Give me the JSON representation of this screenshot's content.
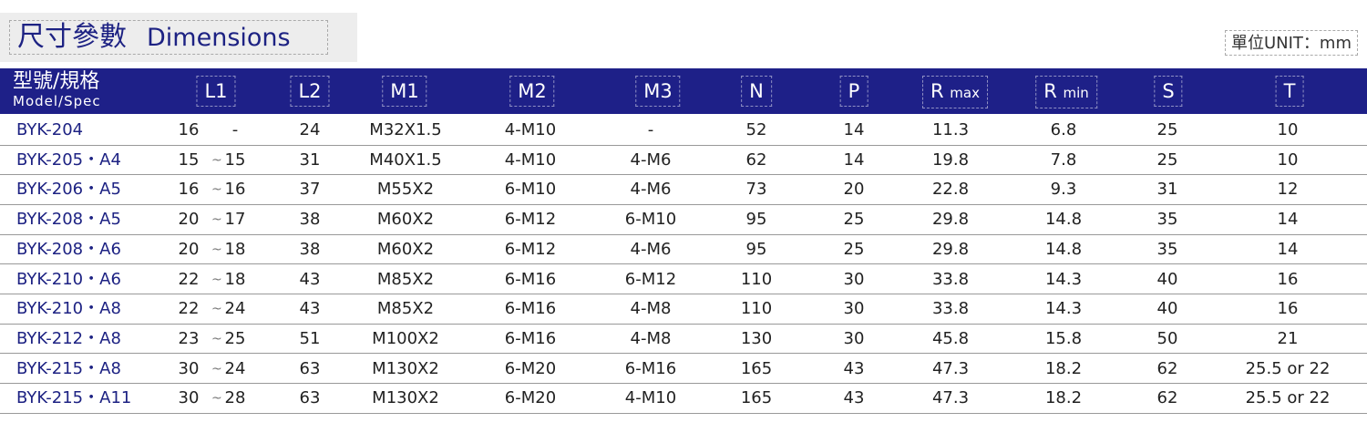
{
  "title": {
    "zh": "尺寸參數",
    "en": "Dimensions"
  },
  "unit": "單位UNIT：mm",
  "header": {
    "model_zh": "型號/規格",
    "model_en": "Model/Spec",
    "cols": [
      "L1",
      "L2",
      "M1",
      "M2",
      "M3",
      "N",
      "P",
      "R",
      "R",
      "S",
      "T"
    ],
    "rmax_sub": "max",
    "rmin_sub": "min"
  },
  "rows": [
    {
      "model": "BYK-204",
      "l1a": "16",
      "tilde": "",
      "l1b": "-",
      "l2": "24",
      "m1": "M32X1.5",
      "m2": "4-M10",
      "m3": "-",
      "n": "52",
      "p": "14",
      "rmax": "11.3",
      "rmin": "6.8",
      "s": "25",
      "t": "10"
    },
    {
      "model": "BYK-205・A4",
      "l1a": "15",
      "tilde": "~",
      "l1b": "15",
      "l2": "31",
      "m1": "M40X1.5",
      "m2": "4-M10",
      "m3": "4-M6",
      "n": "62",
      "p": "14",
      "rmax": "19.8",
      "rmin": "7.8",
      "s": "25",
      "t": "10"
    },
    {
      "model": "BYK-206・A5",
      "l1a": "16",
      "tilde": "~",
      "l1b": "16",
      "l2": "37",
      "m1": "M55X2",
      "m2": "6-M10",
      "m3": "4-M6",
      "n": "73",
      "p": "20",
      "rmax": "22.8",
      "rmin": "9.3",
      "s": "31",
      "t": "12"
    },
    {
      "model": "BYK-208・A5",
      "l1a": "20",
      "tilde": "~",
      "l1b": "17",
      "l2": "38",
      "m1": "M60X2",
      "m2": "6-M12",
      "m3": "6-M10",
      "n": "95",
      "p": "25",
      "rmax": "29.8",
      "rmin": "14.8",
      "s": "35",
      "t": "14"
    },
    {
      "model": "BYK-208・A6",
      "l1a": "20",
      "tilde": "~",
      "l1b": "18",
      "l2": "38",
      "m1": "M60X2",
      "m2": "6-M12",
      "m3": "4-M6",
      "n": "95",
      "p": "25",
      "rmax": "29.8",
      "rmin": "14.8",
      "s": "35",
      "t": "14"
    },
    {
      "model": "BYK-210・A6",
      "l1a": "22",
      "tilde": "~",
      "l1b": "18",
      "l2": "43",
      "m1": "M85X2",
      "m2": "6-M16",
      "m3": "6-M12",
      "n": "110",
      "p": "30",
      "rmax": "33.8",
      "rmin": "14.3",
      "s": "40",
      "t": "16"
    },
    {
      "model": "BYK-210・A8",
      "l1a": "22",
      "tilde": "~",
      "l1b": "24",
      "l2": "43",
      "m1": "M85X2",
      "m2": "6-M16",
      "m3": "4-M8",
      "n": "110",
      "p": "30",
      "rmax": "33.8",
      "rmin": "14.3",
      "s": "40",
      "t": "16"
    },
    {
      "model": "BYK-212・A8",
      "l1a": "23",
      "tilde": "~",
      "l1b": "25",
      "l2": "51",
      "m1": "M100X2",
      "m2": "6-M16",
      "m3": "4-M8",
      "n": "130",
      "p": "30",
      "rmax": "45.8",
      "rmin": "15.8",
      "s": "50",
      "t": "21"
    },
    {
      "model": "BYK-215・A8",
      "l1a": "30",
      "tilde": "~",
      "l1b": "24",
      "l2": "63",
      "m1": "M130X2",
      "m2": "6-M20",
      "m3": "6-M16",
      "n": "165",
      "p": "43",
      "rmax": "47.3",
      "rmin": "18.2",
      "s": "62",
      "t": "25.5 or 22"
    },
    {
      "model": "BYK-215・A11",
      "l1a": "30",
      "tilde": "~",
      "l1b": "28",
      "l2": "63",
      "m1": "M130X2",
      "m2": "6-M20",
      "m3": "4-M10",
      "n": "165",
      "p": "43",
      "rmax": "47.3",
      "rmin": "18.2",
      "s": "62",
      "t": "25.5 or 22"
    }
  ],
  "colors": {
    "header_bg": "#1e2088",
    "model_text": "#1d2283"
  }
}
